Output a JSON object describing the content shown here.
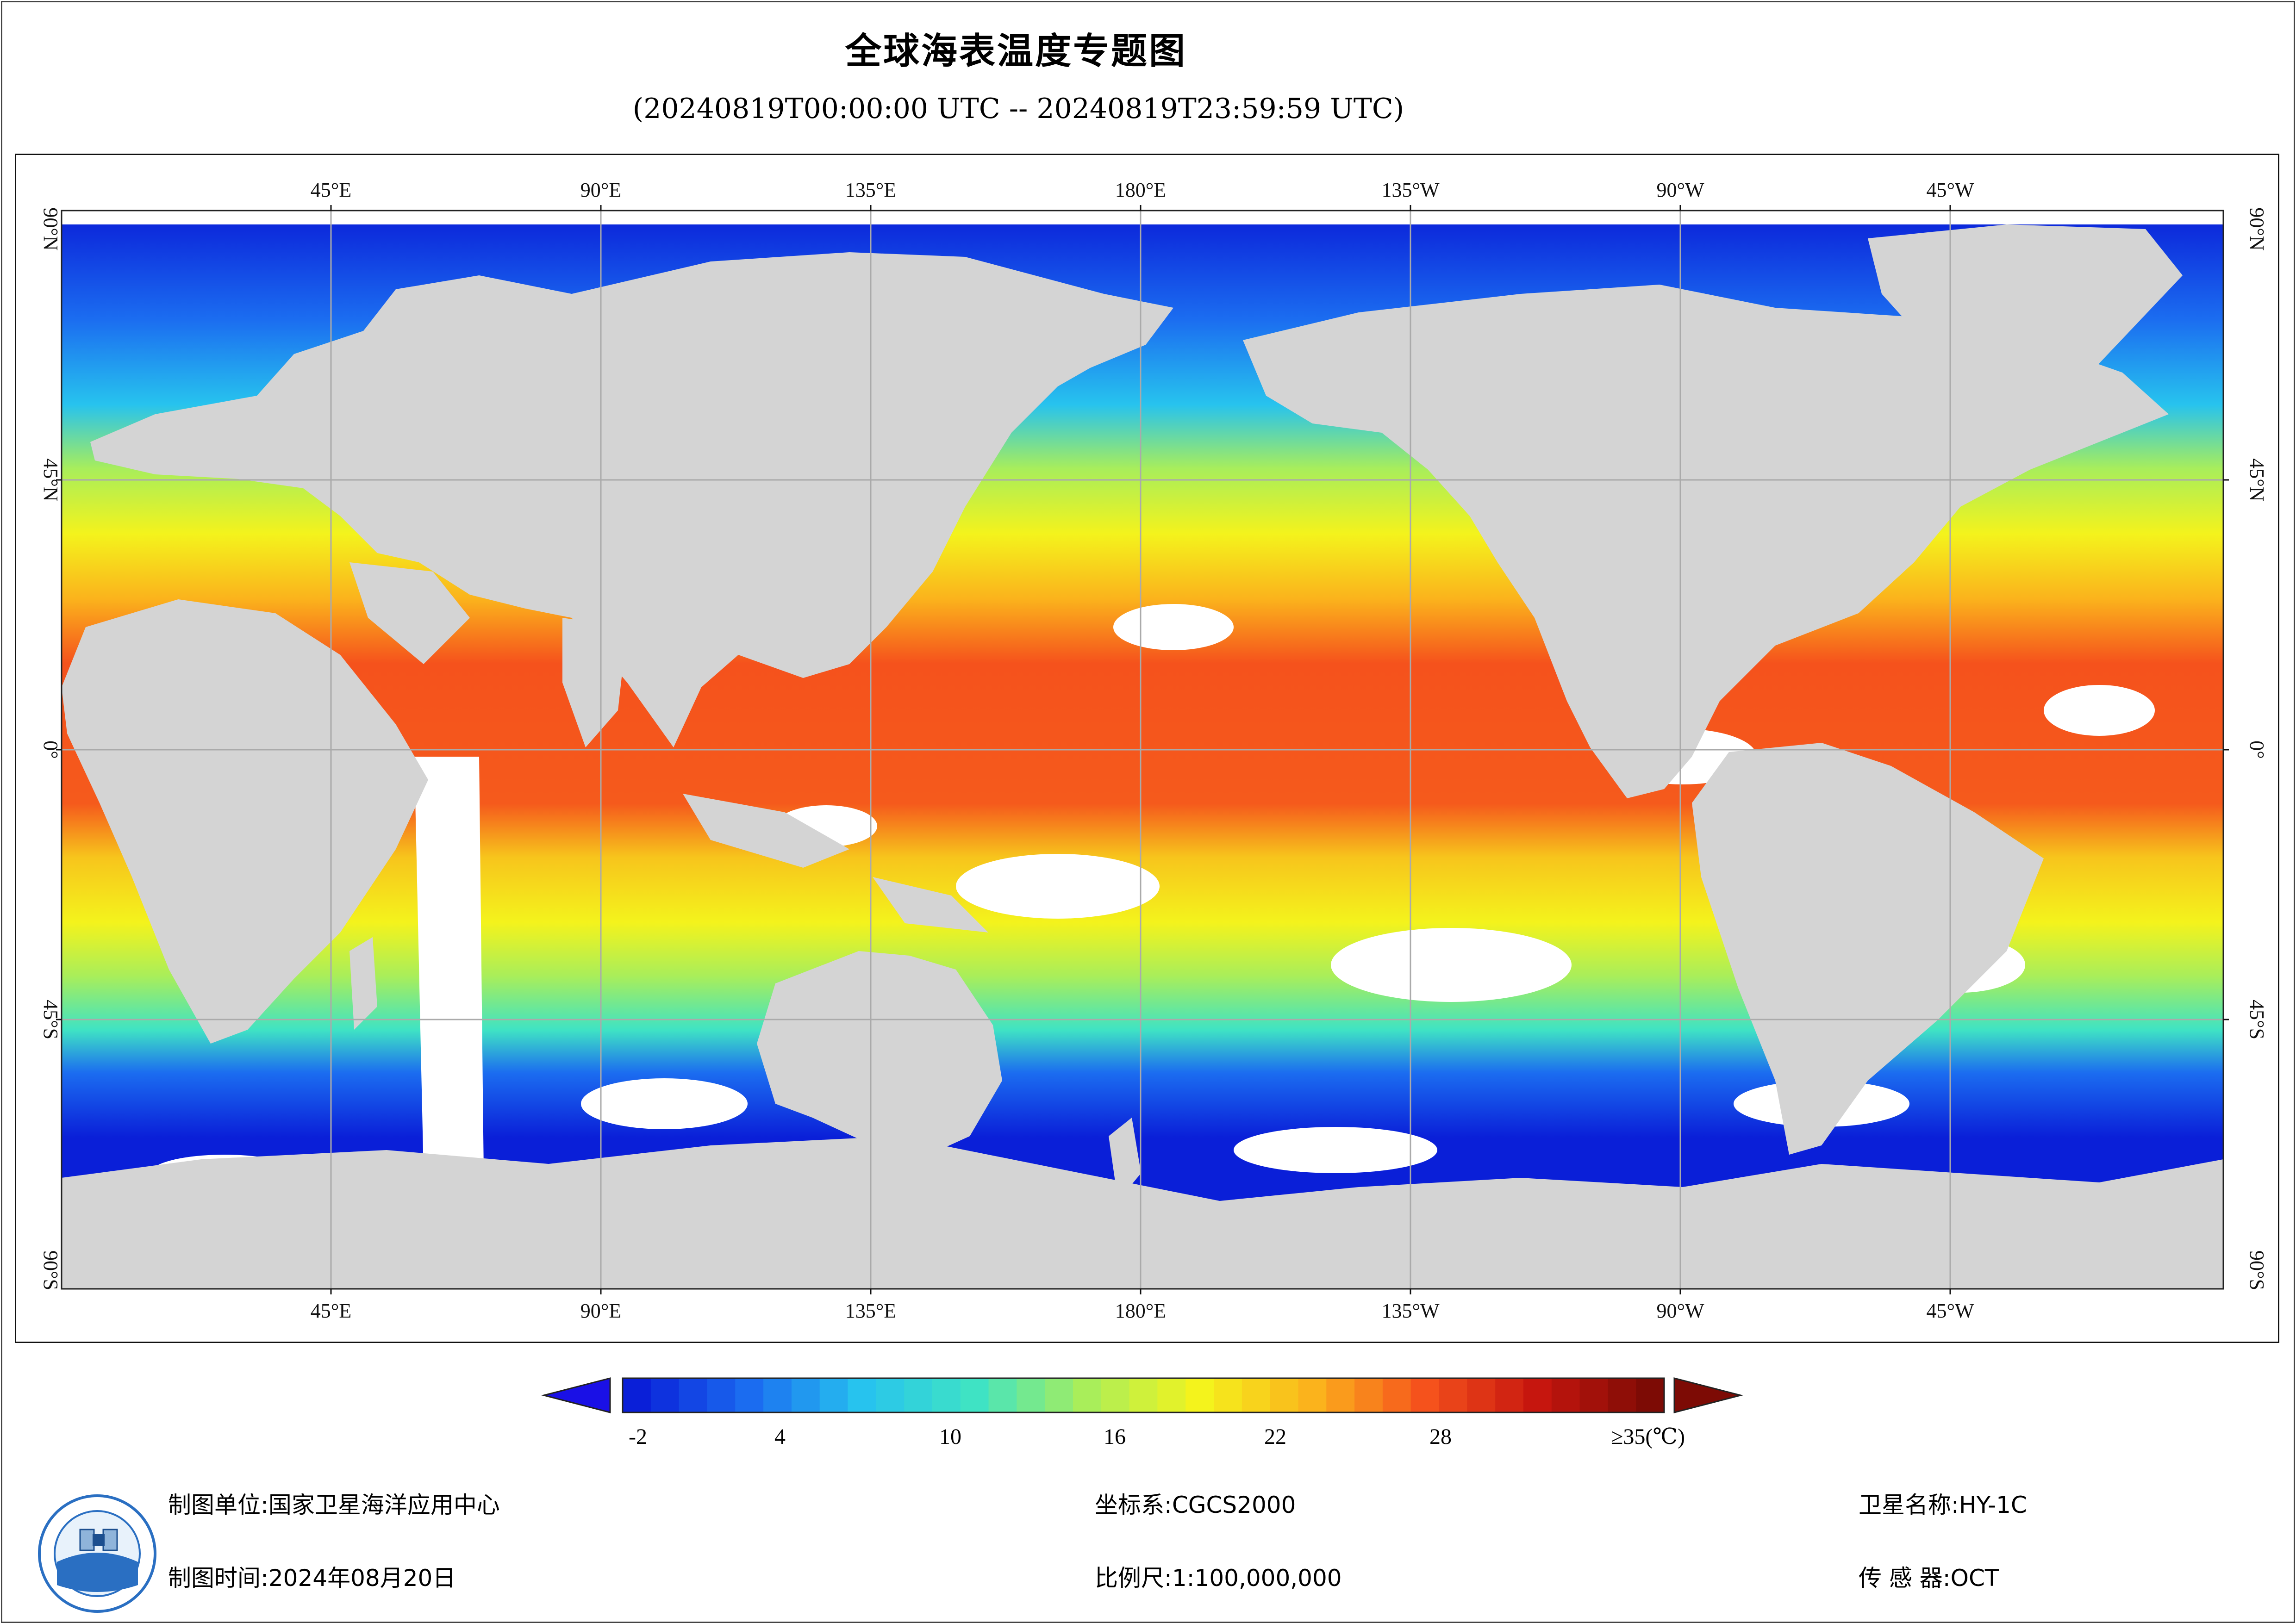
{
  "title": "全球海表温度专题图",
  "subtitle": "(20240819T00:00:00 UTC -- 20240819T23:59:59 UTC)",
  "lon_labels": [
    "45°E",
    "90°E",
    "135°E",
    "180°E",
    "135°W",
    "90°W",
    "45°W"
  ],
  "lat_labels": [
    "90°N",
    "45°N",
    "0°",
    "45°S",
    "90°S"
  ],
  "colorbar": {
    "tick_labels": [
      "-2",
      "4",
      "10",
      "16",
      "22",
      "28",
      "≥35(℃)"
    ],
    "min": -2,
    "max": 35,
    "colors": [
      "#0a1fd8",
      "#1b6cf0",
      "#27c3ee",
      "#3fe3c4",
      "#a9ee5a",
      "#f4f31c",
      "#fbb31c",
      "#f5521c",
      "#c6160e",
      "#7d0b05"
    ]
  },
  "footer": {
    "unit_label": "制图单位:",
    "unit_value": "国家卫星海洋应用中心",
    "time_label": "制图时间:",
    "time_value": "2024年08月20日",
    "crs_label": "坐标系:",
    "crs_value": "CGCS2000",
    "scale_label": "比例尺:",
    "scale_value": "1:100,000,000",
    "sat_label": "卫星名称:",
    "sat_value": "HY-1C",
    "sensor_label": "传 感 器:",
    "sensor_value": "OCT"
  },
  "colors": {
    "land": "#d4d4d4",
    "cloud": "#ffffff",
    "grid": "#aaaaaa"
  }
}
